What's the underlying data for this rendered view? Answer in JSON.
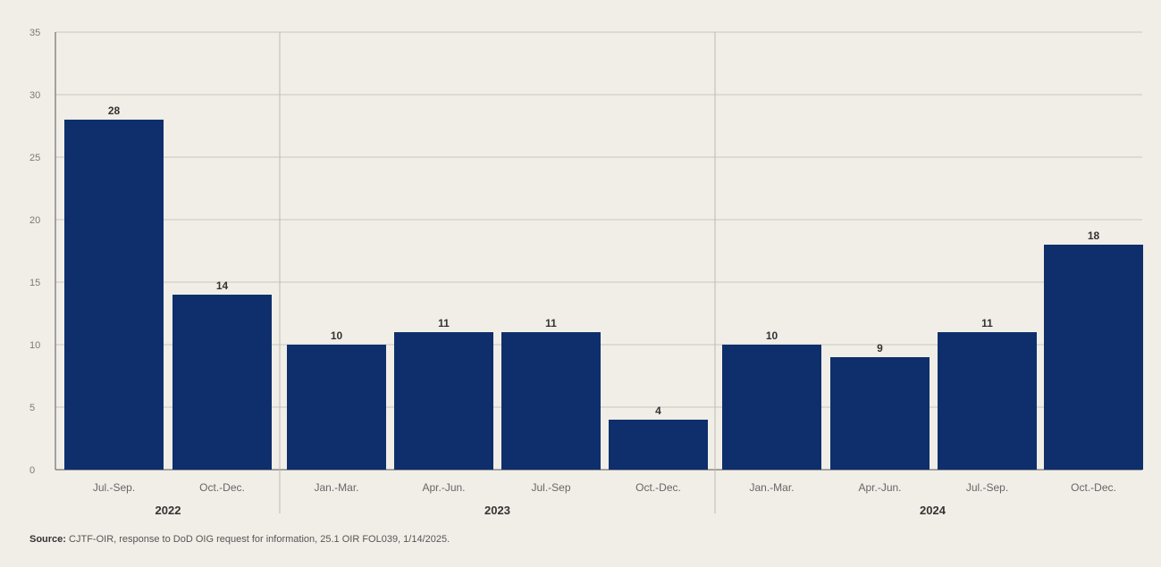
{
  "chart_data": {
    "type": "bar",
    "categories": [
      "Jul.-Sep.",
      "Oct.-Dec.",
      "Jan.-Mar.",
      "Apr.-Jun.",
      "Jul.-Sep",
      "Oct.-Dec.",
      "Jan.-Mar.",
      "Apr.-Jun.",
      "Jul.-Sep.",
      "Oct.-Dec."
    ],
    "groups": [
      {
        "label": "2022",
        "count": 2
      },
      {
        "label": "2023",
        "count": 4
      },
      {
        "label": "2024",
        "count": 4
      }
    ],
    "values": [
      28,
      14,
      10,
      11,
      11,
      4,
      10,
      9,
      11,
      18
    ],
    "yticks": [
      0,
      5,
      10,
      15,
      20,
      25,
      30,
      35
    ],
    "ylim": [
      0,
      35
    ],
    "grid": true,
    "bar_color": "#0e2f6b"
  },
  "source": {
    "label": "Source:",
    "text": "CJTF-OIR, response to DoD OIG request for information, 25.1 OIR FOL039, 1/14/2025."
  }
}
